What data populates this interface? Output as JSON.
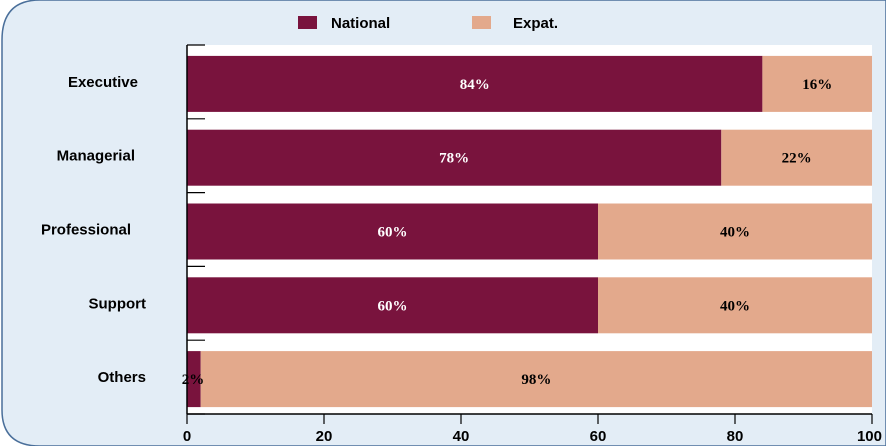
{
  "colors": {
    "national": "#79133d",
    "expat": "#e3a98c",
    "frame_fill": "#e3edf6",
    "frame_stroke": "#4a6f9a",
    "label_on_dark": "#ffffff",
    "label_on_light": "#000000"
  },
  "chart_data": {
    "type": "bar",
    "orientation": "horizontal",
    "stacked": true,
    "title": "",
    "xlabel": "",
    "ylabel": "",
    "categories": [
      "Executive",
      "Managerial",
      "Professional",
      "Support",
      "Others"
    ],
    "series": [
      {
        "name": "National",
        "color": "#79133d",
        "values": [
          84,
          78,
          60,
          60,
          2
        ],
        "labels": [
          "84%",
          "78%",
          "60%",
          "60%",
          "2%"
        ]
      },
      {
        "name": "Expat.",
        "color": "#e3a98c",
        "values": [
          16,
          22,
          40,
          40,
          98
        ],
        "labels": [
          "16%",
          "22%",
          "40%",
          "40%",
          "98%"
        ]
      }
    ],
    "xlim": [
      0,
      100
    ],
    "xticks": [
      "0",
      "20",
      "40",
      "60",
      "80",
      "100"
    ],
    "grid": false,
    "legend": "top-center"
  }
}
